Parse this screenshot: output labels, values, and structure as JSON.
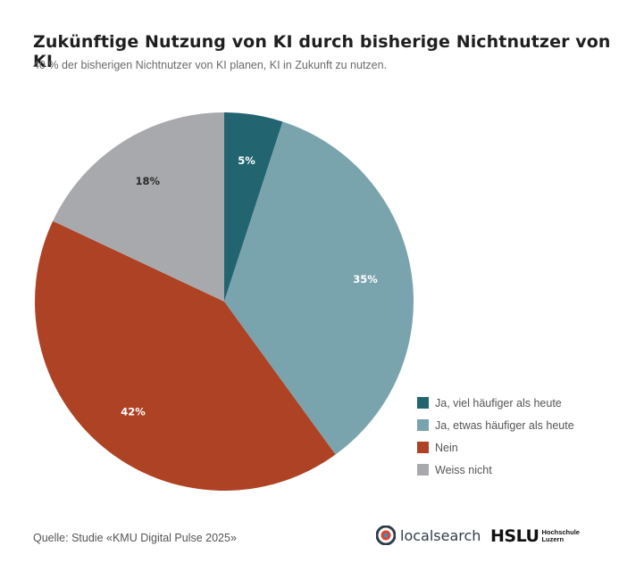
{
  "header": {
    "title": "Zukünftige Nutzung von KI durch bisherige Nichtnutzer von KI",
    "subtitle": "40 % der bisherigen Nichtnutzer von KI planen, KI in Zukunft zu nutzen."
  },
  "chart_data": {
    "type": "pie",
    "title": "Zukünftige Nutzung von KI durch bisherige Nichtnutzer von KI",
    "legend_position": "bottom-right",
    "slices": [
      {
        "label": "Ja, viel häufiger als heute",
        "value": 5,
        "value_label": "5%",
        "color": "#226571",
        "label_color": "#ffffff"
      },
      {
        "label": "Ja, etwas häufiger als heute",
        "value": 35,
        "value_label": "35%",
        "color": "#7aa4ad",
        "label_color": "#ffffff"
      },
      {
        "label": "Nein",
        "value": 42,
        "value_label": "42%",
        "color": "#ae4224",
        "label_color": "#ffffff"
      },
      {
        "label": "Weiss nicht",
        "value": 18,
        "value_label": "18%",
        "color": "#a8a9ad",
        "label_color": "#2b2b2b"
      }
    ]
  },
  "footer": {
    "source": "Quelle: Studie «KMU Digital Pulse 2025»",
    "logo_localsearch": "localsearch",
    "logo_hslu": "HSLU",
    "logo_hslu_line1": "Hochschule",
    "logo_hslu_line2": "Luzern"
  }
}
